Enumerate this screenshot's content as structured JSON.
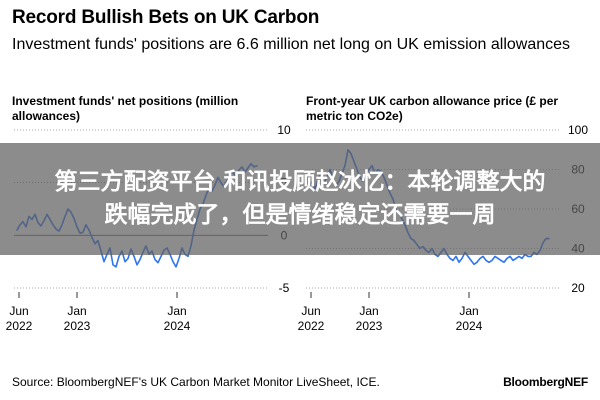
{
  "header": {
    "title": "Record Bullish Bets on UK Carbon",
    "subtitle": "Investment funds' positions are 6.6 million net long on UK emission allowances"
  },
  "overlay": {
    "line1": "第三方配资平台 和讯投顾赵冰忆：本轮调整大的",
    "line2": "跌幅完成了，但是情绪稳定还需要一周"
  },
  "footer": {
    "source": "Source: BloombergNEF's UK Carbon Market Monitor LiveSheet, ICE.",
    "brand": "BloombergNEF"
  },
  "colors": {
    "series": "#2f74f0",
    "gridline": "#555555",
    "overlay": "#5f5f5f"
  },
  "chart_data": [
    {
      "type": "line",
      "title": "Investment funds' net positions (million allowances)",
      "xlabel": "",
      "ylabel": "",
      "ylim": [
        -5,
        10
      ],
      "yticks": [
        -5,
        0,
        5,
        10
      ],
      "xlim": [
        2022.37,
        2024.83
      ],
      "xticks": [
        {
          "line1": "Jun",
          "line2": "2022",
          "t": 2022.42
        },
        {
          "line1": "Jan",
          "line2": "2023",
          "t": 2023.0
        },
        {
          "line1": "Jan",
          "line2": "2024",
          "t": 2024.0
        }
      ],
      "series": [
        {
          "name": "Net positions",
          "x": [
            2022.4,
            2022.43,
            2022.46,
            2022.49,
            2022.52,
            2022.55,
            2022.58,
            2022.61,
            2022.64,
            2022.67,
            2022.7,
            2022.73,
            2022.76,
            2022.79,
            2022.82,
            2022.85,
            2022.88,
            2022.91,
            2022.94,
            2022.97,
            2023.0,
            2023.03,
            2023.06,
            2023.09,
            2023.12,
            2023.15,
            2023.18,
            2023.21,
            2023.24,
            2023.27,
            2023.3,
            2023.33,
            2023.36,
            2023.39,
            2023.42,
            2023.45,
            2023.48,
            2023.51,
            2023.54,
            2023.57,
            2023.6,
            2023.63,
            2023.66,
            2023.69,
            2023.72,
            2023.75,
            2023.78,
            2023.81,
            2023.84,
            2023.87,
            2023.9,
            2023.93,
            2023.96,
            2023.99,
            2024.02,
            2024.05,
            2024.08,
            2024.11,
            2024.14,
            2024.17,
            2024.2,
            2024.23,
            2024.26,
            2024.29,
            2024.32,
            2024.35,
            2024.38,
            2024.41,
            2024.44,
            2024.47,
            2024.5,
            2024.53,
            2024.56,
            2024.59,
            2024.62,
            2024.65,
            2024.68,
            2024.71,
            2024.74,
            2024.77,
            2024.8
          ],
          "values": [
            0.5,
            1.0,
            1.3,
            0.8,
            1.8,
            1.5,
            2.0,
            1.2,
            0.9,
            1.4,
            2.0,
            1.5,
            1.0,
            0.6,
            0.4,
            1.0,
            1.8,
            2.5,
            2.2,
            1.6,
            0.8,
            0.2,
            0.3,
            1.0,
            0.5,
            -0.2,
            -0.8,
            -0.5,
            -1.5,
            -2.5,
            -1.8,
            -1.2,
            -2.8,
            -3.0,
            -2.0,
            -1.5,
            -2.5,
            -2.2,
            -1.3,
            -2.0,
            -2.8,
            -2.3,
            -1.6,
            -1.0,
            -1.8,
            -1.5,
            -2.3,
            -2.6,
            -2.0,
            -1.4,
            -1.2,
            -1.8,
            -2.5,
            -3.0,
            -2.2,
            -1.2,
            -1.8,
            -2.0,
            -1.0,
            0.5,
            1.5,
            2.5,
            3.0,
            3.8,
            4.5,
            4.2,
            4.8,
            5.5,
            5.0,
            4.6,
            5.2,
            5.8,
            6.0,
            5.6,
            6.2,
            6.5,
            6.0,
            6.4,
            6.8,
            6.5,
            6.6
          ]
        }
      ]
    },
    {
      "type": "line",
      "title": "Front-year UK carbon allowance price (£ per metric ton CO2e)",
      "xlabel": "",
      "ylabel": "",
      "ylim": [
        20,
        100
      ],
      "yticks": [
        20,
        40,
        60,
        80,
        100
      ],
      "xlim": [
        2022.37,
        2024.83
      ],
      "xticks": [
        {
          "line1": "Jun",
          "line2": "2022",
          "t": 2022.42
        },
        {
          "line1": "Jan",
          "line2": "2023",
          "t": 2023.0
        },
        {
          "line1": "Jan",
          "line2": "2024",
          "t": 2024.0
        }
      ],
      "series": [
        {
          "name": "Price",
          "x": [
            2022.4,
            2022.43,
            2022.46,
            2022.49,
            2022.52,
            2022.55,
            2022.58,
            2022.61,
            2022.64,
            2022.67,
            2022.7,
            2022.73,
            2022.76,
            2022.79,
            2022.82,
            2022.85,
            2022.88,
            2022.91,
            2022.94,
            2022.97,
            2023.0,
            2023.03,
            2023.06,
            2023.09,
            2023.12,
            2023.15,
            2023.18,
            2023.21,
            2023.24,
            2023.27,
            2023.3,
            2023.33,
            2023.36,
            2023.39,
            2023.42,
            2023.45,
            2023.48,
            2023.51,
            2023.54,
            2023.57,
            2023.6,
            2023.63,
            2023.66,
            2023.69,
            2023.72,
            2023.75,
            2023.78,
            2023.81,
            2023.84,
            2023.87,
            2023.9,
            2023.93,
            2023.96,
            2023.99,
            2024.02,
            2024.05,
            2024.08,
            2024.11,
            2024.14,
            2024.17,
            2024.2,
            2024.23,
            2024.26,
            2024.29,
            2024.32,
            2024.35,
            2024.38,
            2024.41,
            2024.44,
            2024.47,
            2024.5,
            2024.53,
            2024.56,
            2024.59,
            2024.62,
            2024.65,
            2024.68,
            2024.71,
            2024.74,
            2024.77,
            2024.8
          ],
          "values": [
            72,
            74,
            70,
            75,
            78,
            73,
            76,
            80,
            75,
            72,
            74,
            78,
            82,
            90,
            88,
            84,
            80,
            76,
            74,
            78,
            80,
            82,
            78,
            80,
            79,
            76,
            72,
            68,
            65,
            60,
            58,
            55,
            52,
            48,
            45,
            44,
            42,
            40,
            41,
            39,
            38,
            40,
            37,
            36,
            38,
            40,
            37,
            35,
            34,
            36,
            33,
            35,
            38,
            36,
            34,
            32,
            33,
            35,
            36,
            34,
            33,
            34,
            36,
            35,
            34,
            33,
            35,
            36,
            34,
            35,
            36,
            35,
            37,
            36,
            36,
            38,
            37,
            39,
            43,
            45,
            45
          ]
        }
      ]
    }
  ]
}
